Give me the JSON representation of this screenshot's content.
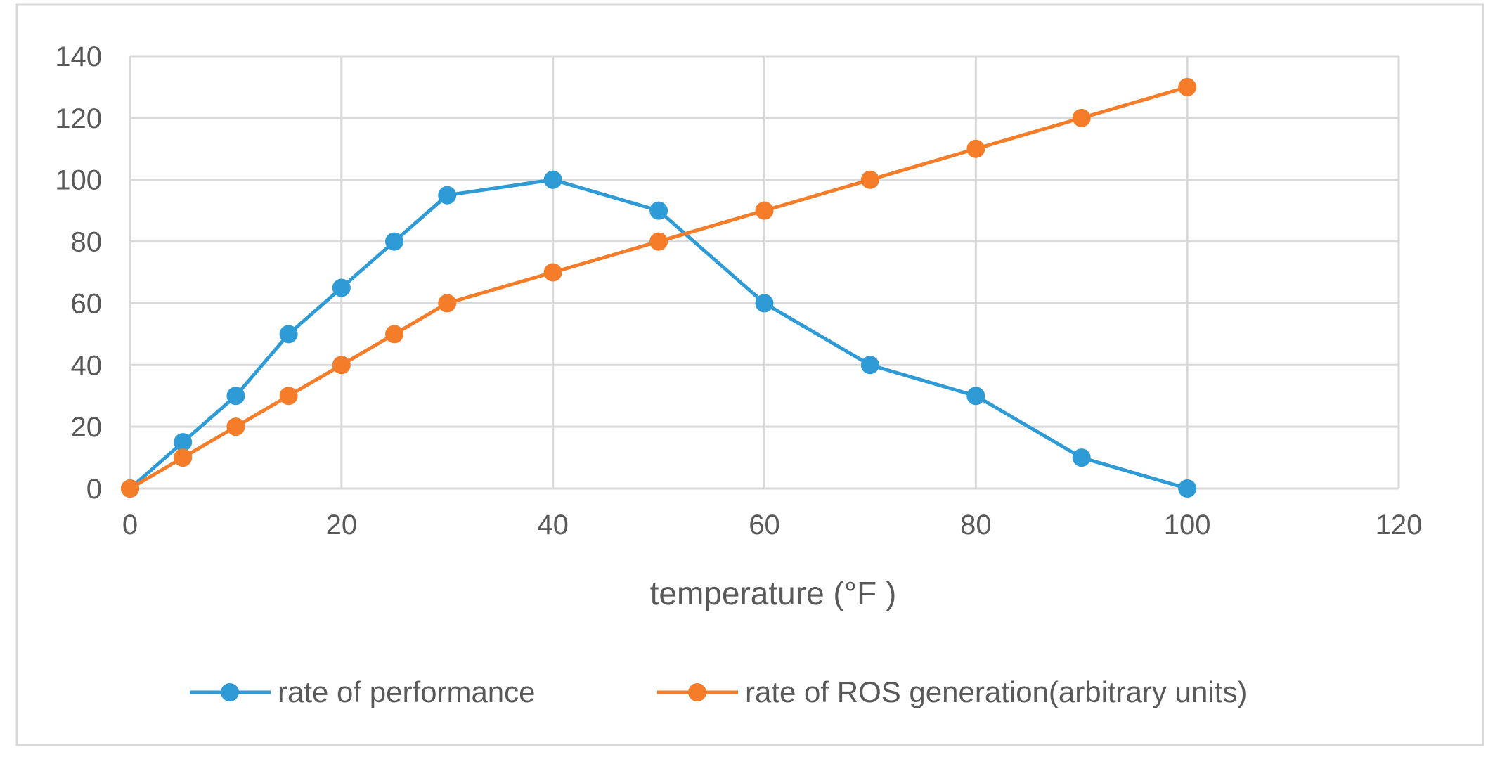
{
  "chart_data": {
    "type": "line",
    "title": "",
    "xlabel": "temperature (°F )",
    "ylabel": "",
    "xlim": [
      0,
      120
    ],
    "ylim": [
      0,
      140
    ],
    "x_ticks": [
      0,
      20,
      40,
      60,
      80,
      100,
      120
    ],
    "y_ticks": [
      0,
      20,
      40,
      60,
      80,
      100,
      120,
      140
    ],
    "grid": true,
    "legend_position": "bottom",
    "series": [
      {
        "name": "rate of performance",
        "color": "#2E9BD6",
        "x": [
          0,
          5,
          10,
          15,
          20,
          25,
          30,
          40,
          50,
          60,
          70,
          80,
          90,
          100
        ],
        "values": [
          0,
          15,
          30,
          50,
          65,
          80,
          95,
          100,
          90,
          60,
          40,
          30,
          10,
          0
        ]
      },
      {
        "name": "rate of ROS generation(arbitrary units)",
        "color": "#F57D2A",
        "x": [
          0,
          5,
          10,
          15,
          20,
          25,
          30,
          40,
          50,
          60,
          70,
          80,
          90,
          100
        ],
        "values": [
          0,
          10,
          20,
          30,
          40,
          50,
          60,
          70,
          80,
          90,
          100,
          110,
          120,
          130
        ]
      }
    ]
  }
}
